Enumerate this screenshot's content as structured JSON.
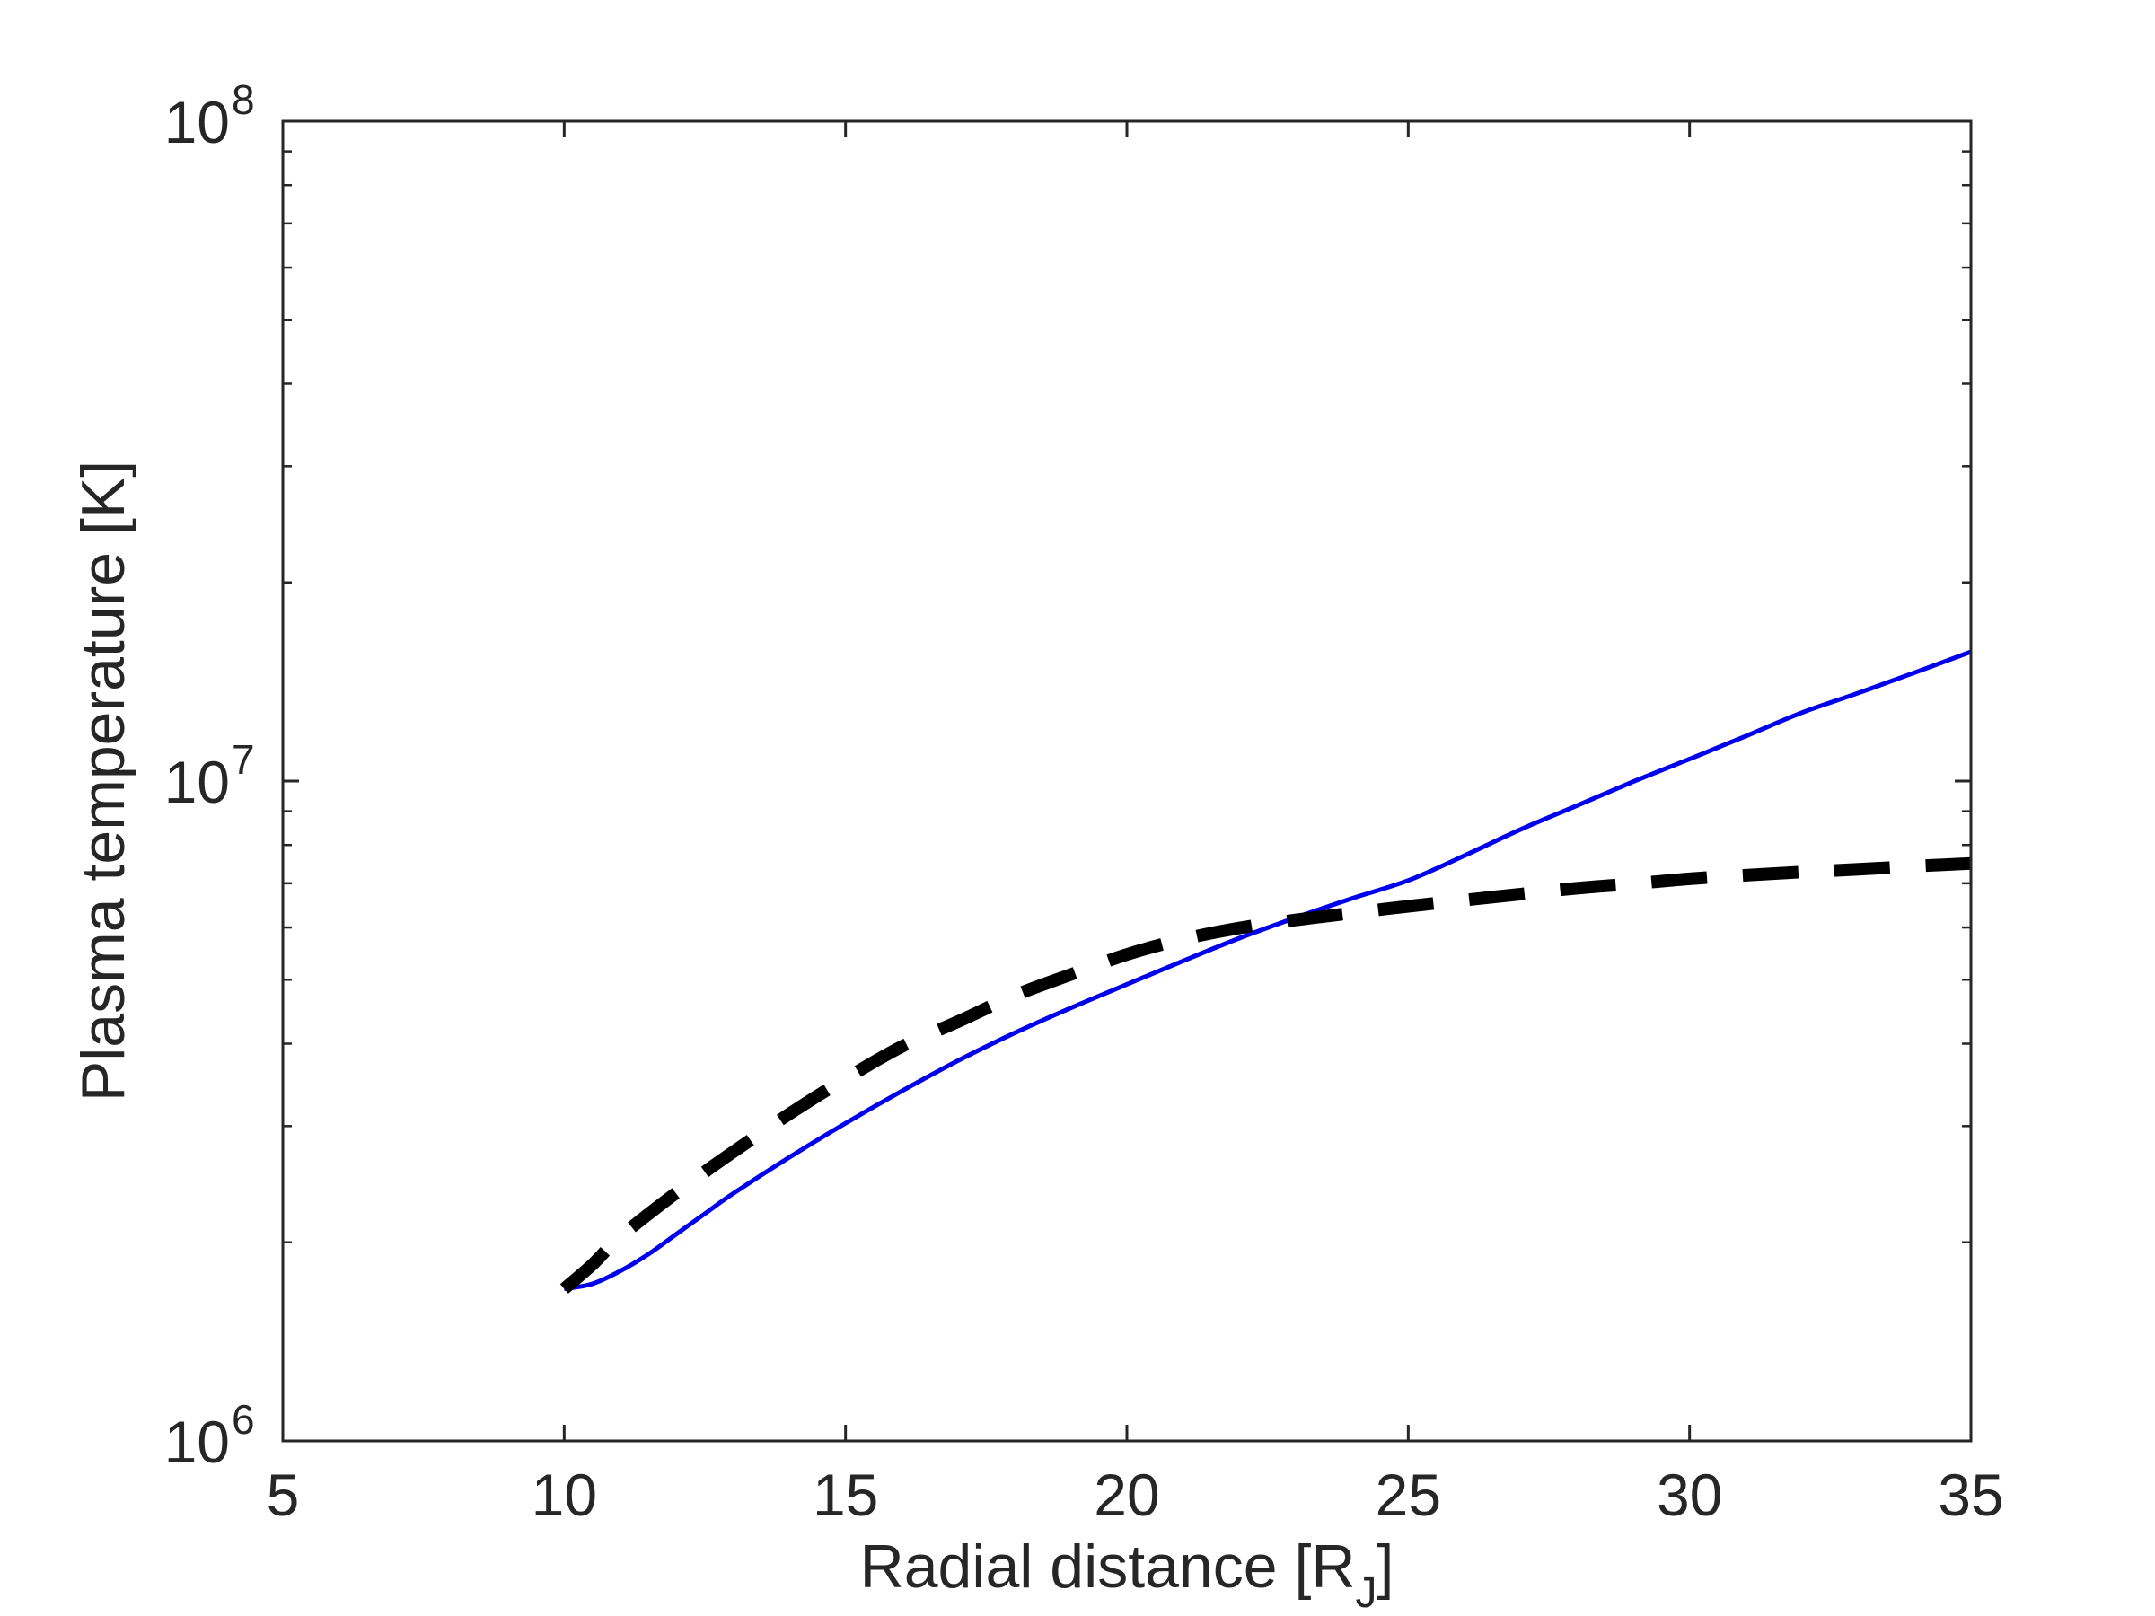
{
  "chart_data": {
    "type": "line",
    "title": "",
    "xlabel": "Radial distance [R",
    "xlabel_subscript": "J",
    "xlabel_suffix": "]",
    "ylabel": "Plasma temperature [K]",
    "xlim": [
      5,
      35
    ],
    "ylim": [
      1000000,
      100000000
    ],
    "yscale": "log",
    "grid": false,
    "legend": "none",
    "x_ticks": [
      5,
      10,
      15,
      20,
      25,
      30,
      35
    ],
    "x_tick_labels": [
      "5",
      "10",
      "15",
      "20",
      "25",
      "30",
      "35"
    ],
    "y_ticks": [
      1000000,
      10000000,
      100000000
    ],
    "y_tick_base": "10",
    "y_tick_exponents": [
      "6",
      "7",
      "8"
    ],
    "series": [
      {
        "style": "solid",
        "color": "#0000ee",
        "x": [
          10,
          10.5,
          11,
          11.5,
          12,
          12.5,
          13,
          14,
          15,
          16,
          17,
          18,
          19,
          20,
          21,
          22,
          23,
          24,
          25,
          26,
          27,
          28,
          29,
          30,
          31,
          32,
          33,
          34,
          35
        ],
        "y": [
          1700000,
          1730000,
          1810000,
          1920000,
          2060000,
          2210000,
          2370000,
          2690000,
          3030000,
          3390000,
          3770000,
          4150000,
          4530000,
          4920000,
          5340000,
          5780000,
          6210000,
          6640000,
          7070000,
          7710000,
          8450000,
          9180000,
          9980000,
          10800000,
          11700000,
          12700000,
          13600000,
          14600000,
          15700000
        ]
      },
      {
        "style": "dashed",
        "color": "#000000",
        "x": [
          10,
          10.5,
          11,
          12,
          13,
          14,
          15,
          16,
          17,
          18,
          19,
          20,
          21,
          22,
          23,
          24,
          25,
          26,
          27,
          28,
          29,
          30,
          31,
          32,
          33,
          34,
          35
        ],
        "y": [
          1700000,
          1850000,
          2040000,
          2380000,
          2740000,
          3130000,
          3540000,
          3960000,
          4320000,
          4730000,
          5090000,
          5460000,
          5760000,
          5990000,
          6160000,
          6310000,
          6460000,
          6600000,
          6740000,
          6880000,
          6990000,
          7110000,
          7200000,
          7280000,
          7350000,
          7430000,
          7500000
        ]
      }
    ]
  }
}
